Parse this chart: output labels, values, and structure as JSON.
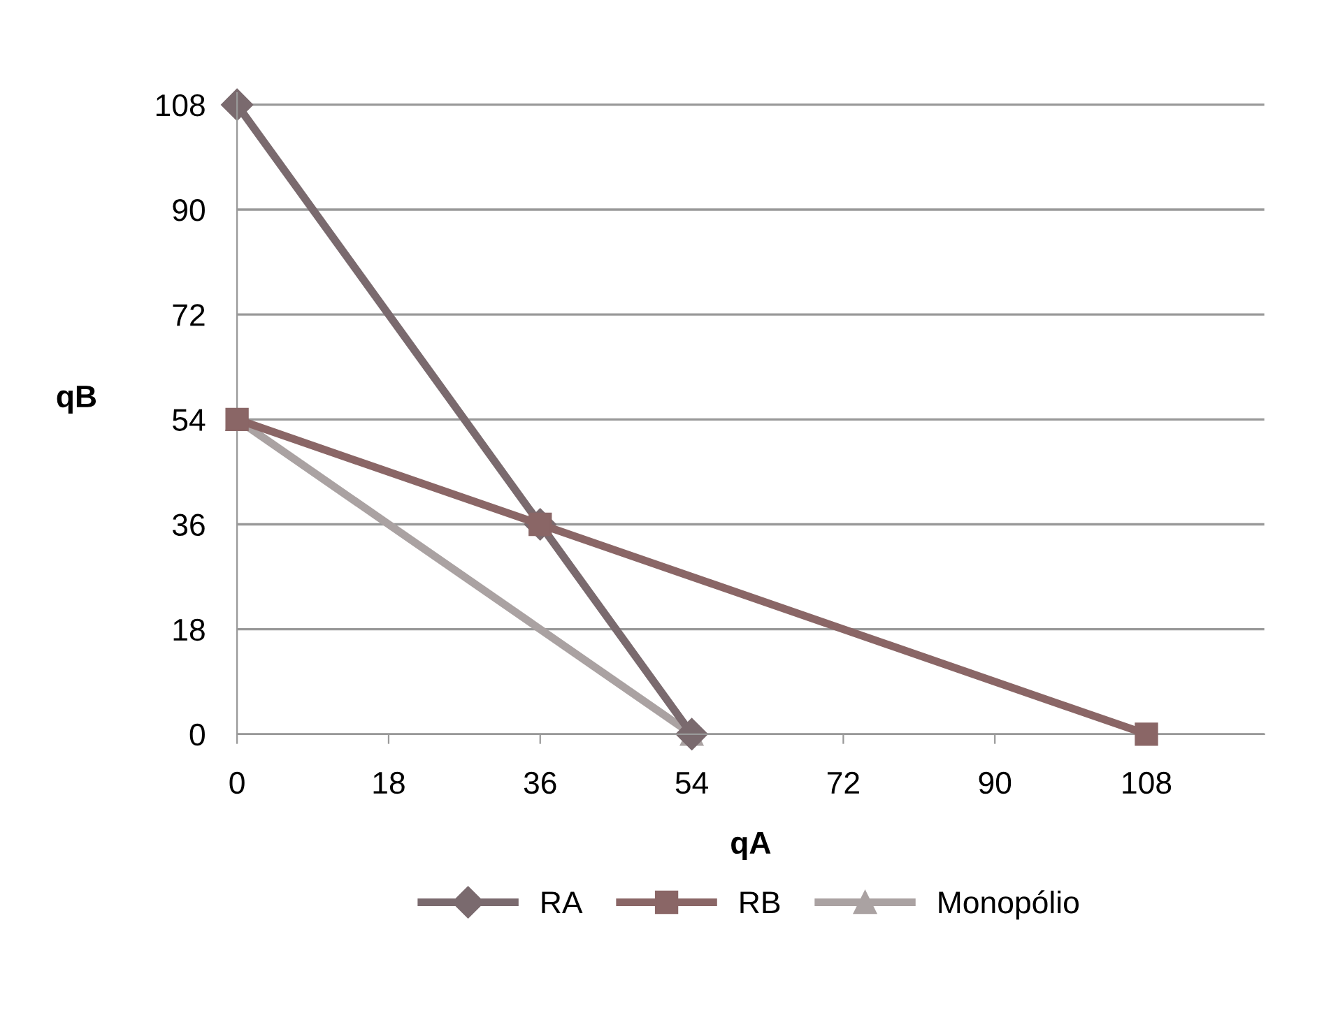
{
  "chart_data": {
    "type": "line",
    "xlabel": "qA",
    "ylabel": "qB",
    "xlim": [
      0,
      122
    ],
    "xticks": [
      0,
      18,
      36,
      54,
      72,
      90,
      108
    ],
    "ylim": [
      0,
      110
    ],
    "yticks": [
      0,
      18,
      36,
      54,
      72,
      90,
      108
    ],
    "grid": "y",
    "legend": "bottom",
    "series": [
      {
        "name": "RA",
        "color": "#7a6a6e",
        "marker": "diamond",
        "x": [
          0,
          36,
          54
        ],
        "values": [
          108,
          36,
          0
        ]
      },
      {
        "name": "RB",
        "color": "#8a6666",
        "marker": "square",
        "x": [
          0,
          36,
          108
        ],
        "values": [
          54,
          36,
          0
        ]
      },
      {
        "name": "Monopólio",
        "color": "#aaa2a2",
        "marker": "triangle",
        "x": [
          0,
          54
        ],
        "values": [
          54,
          0
        ]
      }
    ]
  }
}
